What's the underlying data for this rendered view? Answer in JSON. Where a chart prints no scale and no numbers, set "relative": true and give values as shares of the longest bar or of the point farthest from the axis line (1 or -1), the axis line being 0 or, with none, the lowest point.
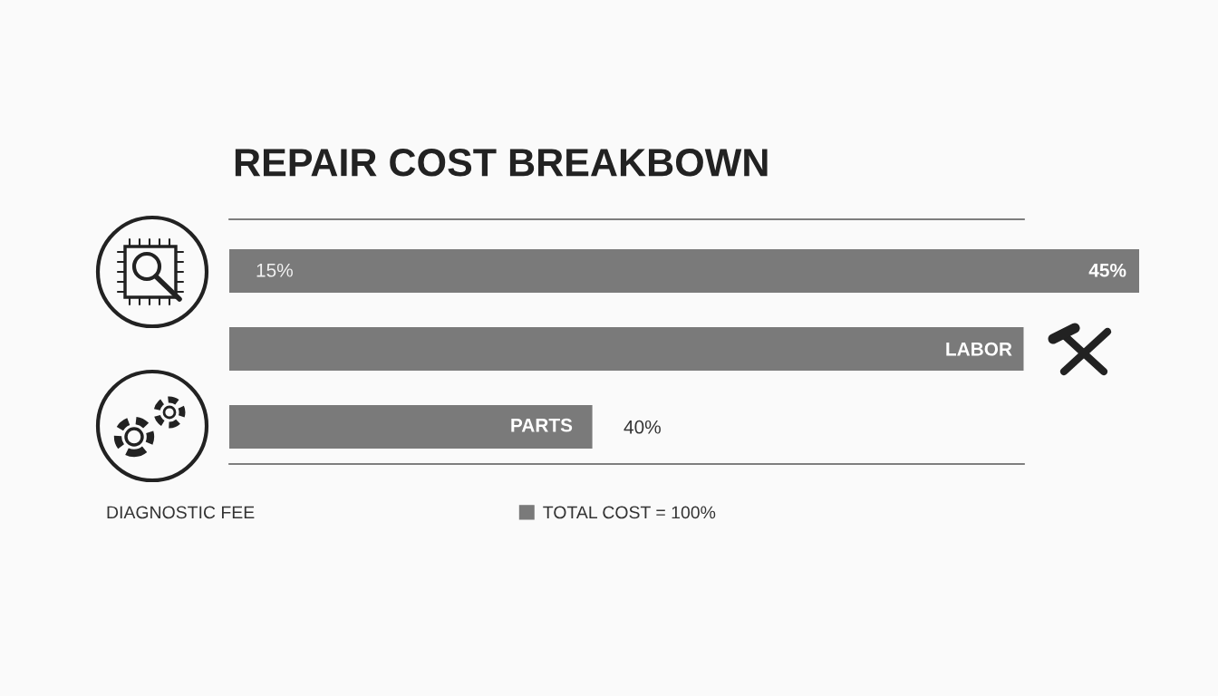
{
  "chart_data": {
    "type": "bar",
    "orientation": "horizontal",
    "relative": true,
    "title": "REPAIR COST BREAKBOWN",
    "categories": [
      null,
      null,
      null
    ],
    "series": [
      {
        "name": "TOTAL COST = 100%",
        "color": "#7a7a7a",
        "values": [
          1,
          0.873,
          0.399
        ]
      }
    ],
    "annotations": [
      "15%",
      "40%",
      "DIAGNOSTIC FEE",
      "45%",
      "LABOR",
      "PARTS"
    ],
    "legend": "bottom"
  }
}
